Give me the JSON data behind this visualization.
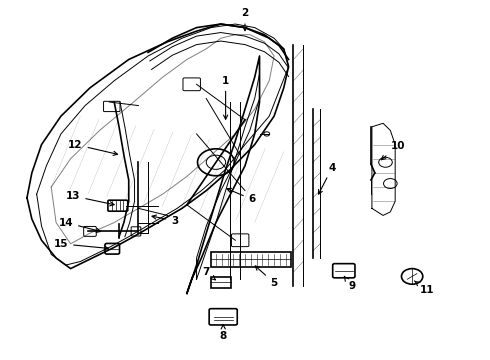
{
  "background_color": "#ffffff",
  "line_color": "#000000",
  "fig_width": 4.9,
  "fig_height": 3.6,
  "dpi": 100,
  "door_outer": {
    "x": [
      0.38,
      0.39,
      0.41,
      0.44,
      0.49,
      0.54,
      0.57,
      0.58,
      0.57,
      0.55,
      0.52,
      0.47,
      0.42,
      0.39,
      0.38
    ],
    "y": [
      0.18,
      0.26,
      0.4,
      0.57,
      0.72,
      0.83,
      0.89,
      0.91,
      0.86,
      0.76,
      0.65,
      0.55,
      0.45,
      0.32,
      0.18
    ]
  },
  "door_outer2": {
    "x": [
      0.36,
      0.37,
      0.39,
      0.42,
      0.47,
      0.53,
      0.56,
      0.57,
      0.56,
      0.54,
      0.51,
      0.46,
      0.4,
      0.37,
      0.36
    ],
    "y": [
      0.17,
      0.25,
      0.39,
      0.56,
      0.71,
      0.82,
      0.88,
      0.92,
      0.87,
      0.77,
      0.66,
      0.56,
      0.46,
      0.31,
      0.17
    ]
  },
  "door_inner": {
    "x": [
      0.41,
      0.43,
      0.46,
      0.5,
      0.54,
      0.57,
      0.57,
      0.55,
      0.52,
      0.47,
      0.43,
      0.41,
      0.41
    ],
    "y": [
      0.22,
      0.32,
      0.47,
      0.62,
      0.74,
      0.83,
      0.76,
      0.65,
      0.56,
      0.48,
      0.37,
      0.26,
      0.22
    ]
  },
  "glass_panel": {
    "x": [
      0.43,
      0.44,
      0.47,
      0.5,
      0.54,
      0.56,
      0.55,
      0.52,
      0.48,
      0.44,
      0.43
    ],
    "y": [
      0.25,
      0.34,
      0.48,
      0.62,
      0.73,
      0.8,
      0.72,
      0.62,
      0.52,
      0.4,
      0.25
    ]
  },
  "top_strip_outer": {
    "x": [
      0.44,
      0.49,
      0.55,
      0.59,
      0.62,
      0.63,
      0.63
    ],
    "y": [
      0.76,
      0.85,
      0.91,
      0.92,
      0.89,
      0.84,
      0.75
    ]
  },
  "top_strip_inner": {
    "x": [
      0.45,
      0.5,
      0.56,
      0.6,
      0.63,
      0.64,
      0.64
    ],
    "y": [
      0.77,
      0.86,
      0.92,
      0.93,
      0.9,
      0.85,
      0.76
    ]
  },
  "right_frame_outer": {
    "x": [
      0.6,
      0.62,
      0.63,
      0.63,
      0.62,
      0.6
    ],
    "y": [
      0.91,
      0.88,
      0.82,
      0.2,
      0.16,
      0.18
    ]
  },
  "right_frame_inner": {
    "x": [
      0.61,
      0.63,
      0.64,
      0.64,
      0.63,
      0.61
    ],
    "y": [
      0.9,
      0.87,
      0.81,
      0.21,
      0.17,
      0.19
    ]
  }
}
